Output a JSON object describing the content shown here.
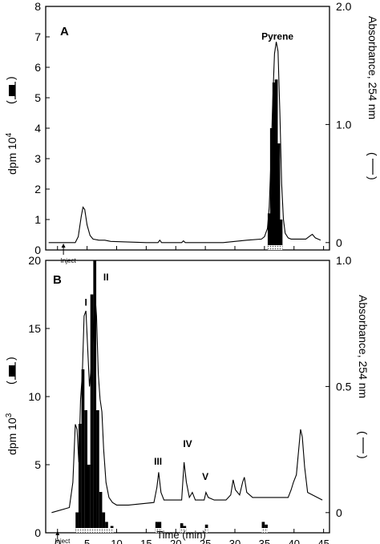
{
  "chart_data": [
    {
      "type": "bar",
      "panel_label": "A",
      "left_axis": {
        "label_text": "dpm 10",
        "label_exponent": "4",
        "ylim": [
          0,
          8
        ],
        "ticks": [
          "0",
          "1",
          "2",
          "3",
          "4",
          "5",
          "6",
          "7",
          "8"
        ]
      },
      "right_axis": {
        "label_text": "Absorbance, 254 nm",
        "ylim": [
          -0.0625,
          2.0
        ],
        "ticks": [
          "0",
          "1.0",
          "2.0"
        ],
        "tick_values": [
          0,
          1.0,
          2.0
        ]
      },
      "xlim": [
        -2,
        46
      ],
      "inject_label": "Inject",
      "inject_time": 1,
      "annotations": [
        {
          "text": "Pyrene",
          "x": 37.2,
          "y_abs": 1.72
        }
      ],
      "radioactivity_bars": [
        {
          "x": 35.8,
          "dpm": 1.2
        },
        {
          "x": 36.2,
          "dpm": 4.0
        },
        {
          "x": 36.6,
          "dpm": 5.5
        },
        {
          "x": 37.0,
          "dpm": 5.6
        },
        {
          "x": 37.4,
          "dpm": 3.5
        },
        {
          "x": 37.8,
          "dpm": 1.0
        }
      ],
      "absorbance_trace": {
        "x": [
          -1.5,
          3.0,
          3.5,
          4.0,
          4.3,
          4.6,
          5.0,
          5.5,
          6.0,
          7.0,
          8.0,
          9.0,
          15.0,
          17.0,
          17.3,
          17.6,
          21.0,
          21.3,
          21.6,
          28.0,
          30.0,
          32.0,
          34.5,
          35.0,
          35.5,
          35.8,
          36.1,
          36.4,
          36.7,
          37.0,
          37.3,
          37.6,
          37.9,
          38.2,
          38.5,
          39.0,
          39.5,
          40.0,
          42.0,
          42.8,
          43.1,
          43.6,
          44.5
        ],
        "y": [
          0.0,
          0.0,
          0.05,
          0.22,
          0.3,
          0.28,
          0.15,
          0.06,
          0.03,
          0.02,
          0.02,
          0.01,
          0.0,
          0.0,
          0.02,
          0.0,
          0.0,
          0.015,
          0.0,
          0.0,
          0.01,
          0.02,
          0.03,
          0.05,
          0.12,
          0.3,
          0.7,
          1.2,
          1.6,
          1.7,
          1.62,
          1.1,
          0.5,
          0.2,
          0.08,
          0.04,
          0.03,
          0.03,
          0.03,
          0.06,
          0.07,
          0.04,
          0.02
        ]
      }
    },
    {
      "type": "bar",
      "panel_label": "B",
      "left_axis": {
        "label_text": "dpm 10",
        "label_exponent": "3",
        "ylim": [
          0,
          20
        ],
        "ticks": [
          "0",
          "5",
          "10",
          "15",
          "20"
        ]
      },
      "right_axis": {
        "label_text": "Absorbance, 254 nm",
        "ylim": [
          -0.08,
          1.0
        ],
        "ticks": [
          "0",
          "0.5",
          "1.0"
        ],
        "tick_values": [
          0,
          0.5,
          1.0
        ]
      },
      "xlim": [
        -2,
        46
      ],
      "xticks": [
        "0",
        "5",
        "10",
        "15",
        "20",
        "25",
        "30",
        "35",
        "40",
        "45"
      ],
      "xtick_values": [
        0,
        5,
        10,
        15,
        20,
        25,
        30,
        35,
        40,
        45
      ],
      "xlabel": "Time (min)",
      "inject_label": "Inject",
      "inject_time": 0,
      "annotations": [
        {
          "text": "I",
          "x": 4.8,
          "y_abs": 0.82
        },
        {
          "text": "II",
          "x": 8.2,
          "y_abs": 0.92
        },
        {
          "text": "III",
          "x": 17.0,
          "y_abs": 0.19
        },
        {
          "text": "IV",
          "x": 22.0,
          "y_abs": 0.26
        },
        {
          "text": "V",
          "x": 25.0,
          "y_abs": 0.13
        }
      ],
      "radioactivity_bars": [
        {
          "x": 3.3,
          "dpm": 1.5
        },
        {
          "x": 3.8,
          "dpm": 8.0
        },
        {
          "x": 4.3,
          "dpm": 12.0
        },
        {
          "x": 4.8,
          "dpm": 9.0
        },
        {
          "x": 5.3,
          "dpm": 5.0
        },
        {
          "x": 5.8,
          "dpm": 17.5
        },
        {
          "x": 6.3,
          "dpm": 20.0
        },
        {
          "x": 6.8,
          "dpm": 9.0
        },
        {
          "x": 7.3,
          "dpm": 3.0
        },
        {
          "x": 7.8,
          "dpm": 1.5
        },
        {
          "x": 8.3,
          "dpm": 0.8
        },
        {
          "x": 9.2,
          "dpm": 0.5
        },
        {
          "x": 16.8,
          "dpm": 0.8
        },
        {
          "x": 17.3,
          "dpm": 0.8
        },
        {
          "x": 21.0,
          "dpm": 0.7
        },
        {
          "x": 21.5,
          "dpm": 0.5
        },
        {
          "x": 25.2,
          "dpm": 0.6
        },
        {
          "x": 34.8,
          "dpm": 0.8
        },
        {
          "x": 35.3,
          "dpm": 0.6
        }
      ],
      "absorbance_trace": {
        "x": [
          -1.0,
          2.0,
          2.6,
          3.0,
          3.3,
          3.6,
          3.9,
          4.2,
          4.5,
          4.8,
          5.1,
          5.4,
          5.7,
          6.0,
          6.3,
          6.6,
          6.9,
          7.2,
          7.5,
          7.8,
          8.2,
          8.7,
          9.3,
          10.0,
          11.0,
          12.0,
          16.3,
          16.8,
          17.1,
          17.5,
          18.0,
          21.0,
          21.4,
          21.8,
          22.3,
          22.8,
          23.3,
          24.0,
          24.8,
          25.1,
          25.5,
          26.5,
          28.5,
          29.3,
          29.7,
          30.1,
          30.8,
          31.3,
          31.6,
          32.0,
          33.0,
          39.0,
          39.5,
          39.9,
          40.4,
          40.8,
          41.1,
          41.4,
          41.8,
          42.3,
          44.8
        ],
        "y": [
          0.0,
          0.02,
          0.12,
          0.35,
          0.33,
          0.2,
          0.45,
          0.55,
          0.78,
          0.8,
          0.65,
          0.5,
          0.58,
          0.7,
          0.88,
          0.78,
          0.55,
          0.45,
          0.4,
          0.25,
          0.12,
          0.06,
          0.04,
          0.03,
          0.03,
          0.03,
          0.04,
          0.1,
          0.16,
          0.08,
          0.05,
          0.05,
          0.2,
          0.12,
          0.06,
          0.08,
          0.05,
          0.05,
          0.05,
          0.08,
          0.06,
          0.05,
          0.05,
          0.07,
          0.13,
          0.09,
          0.07,
          0.12,
          0.14,
          0.08,
          0.06,
          0.06,
          0.09,
          0.12,
          0.15,
          0.25,
          0.33,
          0.3,
          0.18,
          0.08,
          0.05
        ]
      }
    }
  ]
}
